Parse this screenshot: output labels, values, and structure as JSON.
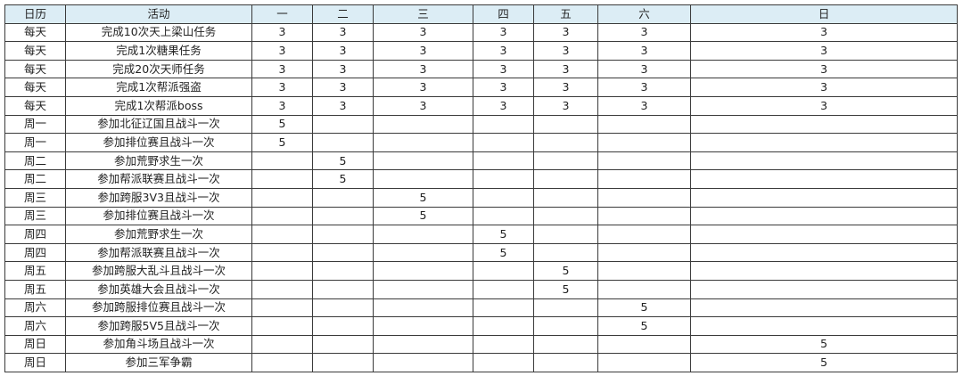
{
  "header": [
    "日历",
    "活动",
    "一",
    "二",
    "三",
    "四",
    "五",
    "六",
    "日"
  ],
  "header_bg": "#dcedf5",
  "rows": [
    {
      "cal": "每天",
      "activity": "完成10次天上梁山任务",
      "cells": [
        "3",
        "3",
        "3",
        "3",
        "3",
        "3",
        "3"
      ]
    },
    {
      "cal": "每天",
      "activity": "完成1次糖果任务",
      "cells": [
        "3",
        "3",
        "3",
        "3",
        "3",
        "3",
        "3"
      ]
    },
    {
      "cal": "每天",
      "activity": "完成20次天师任务",
      "cells": [
        "3",
        "3",
        "3",
        "3",
        "3",
        "3",
        "3"
      ]
    },
    {
      "cal": "每天",
      "activity": "完成1次帮派强盗",
      "cells": [
        "3",
        "3",
        "3",
        "3",
        "3",
        "3",
        "3"
      ]
    },
    {
      "cal": "每天",
      "activity": "完成1次帮派boss",
      "cells": [
        "3",
        "3",
        "3",
        "3",
        "3",
        "3",
        "3"
      ]
    },
    {
      "cal": "周一",
      "activity": "参加北征辽国且战斗一次",
      "cells": [
        "5",
        "",
        "",
        "",
        "",
        "",
        ""
      ]
    },
    {
      "cal": "周一",
      "activity": "参加排位赛且战斗一次",
      "cells": [
        "5",
        "",
        "",
        "",
        "",
        "",
        ""
      ]
    },
    {
      "cal": "周二",
      "activity": "参加荒野求生一次",
      "cells": [
        "",
        "5",
        "",
        "",
        "",
        "",
        ""
      ]
    },
    {
      "cal": "周二",
      "activity": "参加帮派联赛且战斗一次",
      "cells": [
        "",
        "5",
        "",
        "",
        "",
        "",
        ""
      ]
    },
    {
      "cal": "周三",
      "activity": "参加跨服3V3且战斗一次",
      "cells": [
        "",
        "",
        "5",
        "",
        "",
        "",
        ""
      ]
    },
    {
      "cal": "周三",
      "activity": "参加排位赛且战斗一次",
      "cells": [
        "",
        "",
        "5",
        "",
        "",
        "",
        ""
      ]
    },
    {
      "cal": "周四",
      "activity": "参加荒野求生一次",
      "cells": [
        "",
        "",
        "",
        "5",
        "",
        "",
        ""
      ]
    },
    {
      "cal": "周四",
      "activity": "参加帮派联赛且战斗一次",
      "cells": [
        "",
        "",
        "",
        "5",
        "",
        "",
        ""
      ]
    },
    {
      "cal": "周五",
      "activity": "参加跨服大乱斗且战斗一次",
      "cells": [
        "",
        "",
        "",
        "",
        "5",
        "",
        ""
      ]
    },
    {
      "cal": "周五",
      "activity": "参加英雄大会且战斗一次",
      "cells": [
        "",
        "",
        "",
        "",
        "5",
        "",
        ""
      ]
    },
    {
      "cal": "周六",
      "activity": "参加跨服排位赛且战斗一次",
      "cells": [
        "",
        "",
        "",
        "",
        "",
        "5",
        ""
      ]
    },
    {
      "cal": "周六",
      "activity": "参加跨服5V5且战斗一次",
      "cells": [
        "",
        "",
        "",
        "",
        "",
        "5",
        ""
      ]
    },
    {
      "cal": "周日",
      "activity": "参加角斗场且战斗一次",
      "cells": [
        "",
        "",
        "",
        "",
        "",
        "",
        "5"
      ]
    },
    {
      "cal": "周日",
      "activity": "参加三军争霸",
      "cells": [
        "",
        "",
        "",
        "",
        "",
        "",
        "5"
      ]
    }
  ]
}
